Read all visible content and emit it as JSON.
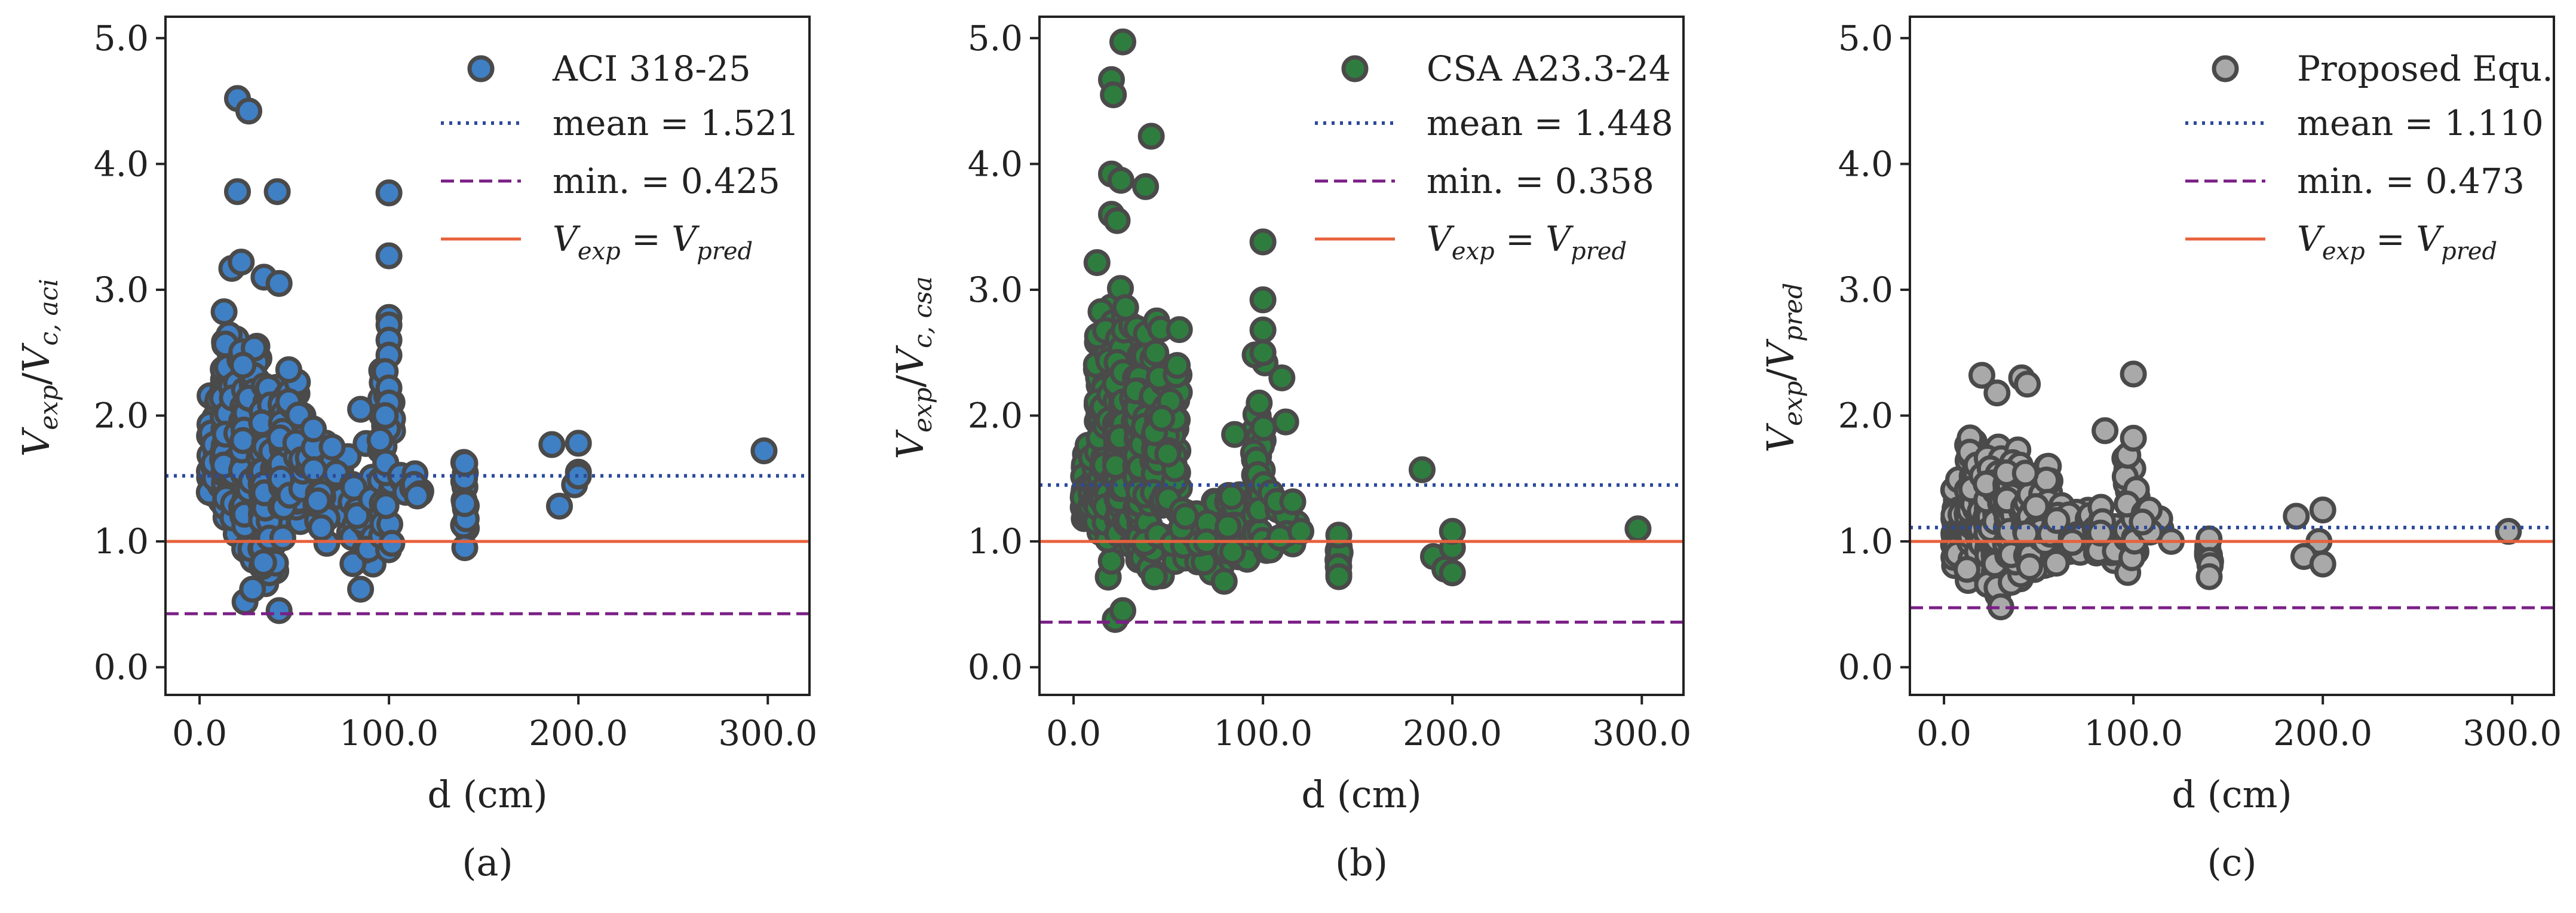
{
  "colors": {
    "aci_fill": "#3f7fc4",
    "csa_fill": "#2e7d3f",
    "proposed_fill": "#a9a9a9",
    "marker_edge": "#4a4a4a",
    "mean_line": "#2b4a9a",
    "min_line": "#7a1f86",
    "unity_line": "#e8613c",
    "axis": "#222222"
  },
  "chart_data": [
    {
      "type": "scatter",
      "panel_caption": "(a)",
      "xlabel": "d (cm)",
      "ylabel": "V_exp/V_c,aci",
      "ylabel_parts": {
        "base": "V",
        "sub1": "exp",
        "sep": "/",
        "base2": "V",
        "sub2": "c, aci"
      },
      "xlim": [
        -18,
        322
      ],
      "ylim": [
        -0.22,
        5.17
      ],
      "xticks": [
        0,
        100,
        200,
        300
      ],
      "xtick_labels": [
        "0.0",
        "100.0",
        "200.0",
        "300.0"
      ],
      "yticks": [
        0,
        1,
        2,
        3,
        4,
        5
      ],
      "ytick_labels": [
        "0.0",
        "1.0",
        "2.0",
        "3.0",
        "4.0",
        "5.0"
      ],
      "fill_key": "aci_fill",
      "legend": {
        "series": "ACI 318-25",
        "mean": "mean = 1.521",
        "min": "min. = 0.425",
        "unity": {
          "a": "V",
          "a_sub": "exp",
          "eq": " = ",
          "b": "V",
          "b_sub": "pred"
        }
      },
      "mean": 1.521,
      "min": 0.425,
      "unity": 1.0,
      "series": {
        "name": "ACI 318-25",
        "clusters": [
          {
            "x": [
              5,
              12
            ],
            "y_min": 1.1,
            "y_max": 2.35,
            "n": 70
          },
          {
            "x": [
              12,
              22
            ],
            "y_min": 0.9,
            "y_max": 3.2,
            "n": 110
          },
          {
            "x": [
              22,
              32
            ],
            "y_min": 0.55,
            "y_max": 2.9,
            "n": 110
          },
          {
            "x": [
              32,
              42
            ],
            "y_min": 0.45,
            "y_max": 2.6,
            "n": 120
          },
          {
            "x": [
              42,
              56
            ],
            "y_min": 0.9,
            "y_max": 2.55,
            "n": 100
          },
          {
            "x": [
              56,
              80
            ],
            "y_min": 0.85,
            "y_max": 2.0,
            "n": 30
          },
          {
            "x": [
              80,
              92
            ],
            "y_min": 0.6,
            "y_max": 1.9,
            "n": 22
          },
          {
            "x": [
              95,
              102
            ],
            "y_min": 0.7,
            "y_max": 2.8,
            "n": 35
          },
          {
            "x": [
              103,
              118
            ],
            "y_min": 1.3,
            "y_max": 1.6,
            "n": 10
          },
          {
            "x": [
              139,
              141
            ],
            "y_min": 0.95,
            "y_max": 1.75,
            "n": 12
          }
        ],
        "points": [
          {
            "x": 20,
            "y": 4.52
          },
          {
            "x": 26,
            "y": 4.42
          },
          {
            "x": 41,
            "y": 3.78
          },
          {
            "x": 20,
            "y": 3.78
          },
          {
            "x": 100,
            "y": 3.77
          },
          {
            "x": 100,
            "y": 3.27
          },
          {
            "x": 17,
            "y": 3.17
          },
          {
            "x": 22,
            "y": 3.22
          },
          {
            "x": 34,
            "y": 3.1
          },
          {
            "x": 42,
            "y": 3.05
          },
          {
            "x": 100,
            "y": 2.78
          },
          {
            "x": 100,
            "y": 2.72
          },
          {
            "x": 100,
            "y": 2.6
          },
          {
            "x": 100,
            "y": 2.48
          },
          {
            "x": 98,
            "y": 2.35
          },
          {
            "x": 100,
            "y": 2.22
          },
          {
            "x": 100,
            "y": 2.1
          },
          {
            "x": 98,
            "y": 2.0
          },
          {
            "x": 85,
            "y": 2.05
          },
          {
            "x": 70,
            "y": 1.75
          },
          {
            "x": 85,
            "y": 0.62
          },
          {
            "x": 42,
            "y": 0.45
          },
          {
            "x": 24,
            "y": 0.52
          },
          {
            "x": 28,
            "y": 0.62
          },
          {
            "x": 186,
            "y": 1.77
          },
          {
            "x": 200,
            "y": 1.78
          },
          {
            "x": 200,
            "y": 1.55
          },
          {
            "x": 198,
            "y": 1.45
          },
          {
            "x": 190,
            "y": 1.28
          },
          {
            "x": 200,
            "y": 1.52
          },
          {
            "x": 298,
            "y": 1.72
          },
          {
            "x": 140,
            "y": 1.62
          },
          {
            "x": 140,
            "y": 1.3
          },
          {
            "x": 140,
            "y": 0.95
          }
        ]
      }
    },
    {
      "type": "scatter",
      "panel_caption": "(b)",
      "xlabel": "d (cm)",
      "ylabel": "V_exp/V_c,csa",
      "ylabel_parts": {
        "base": "V",
        "sub1": "exp",
        "sep": "/",
        "base2": "V",
        "sub2": "c, csa"
      },
      "xlim": [
        -18,
        322
      ],
      "ylim": [
        -0.22,
        5.17
      ],
      "xticks": [
        0,
        100,
        200,
        300
      ],
      "xtick_labels": [
        "0.0",
        "100.0",
        "200.0",
        "300.0"
      ],
      "yticks": [
        0,
        1,
        2,
        3,
        4,
        5
      ],
      "ytick_labels": [
        "0.0",
        "1.0",
        "2.0",
        "3.0",
        "4.0",
        "5.0"
      ],
      "fill_key": "csa_fill",
      "legend": {
        "series": "CSA A23.3-24",
        "mean": "mean = 1.448",
        "min": "min. = 0.358",
        "unity": {
          "a": "V",
          "a_sub": "exp",
          "eq": " = ",
          "b": "V",
          "b_sub": "pred"
        }
      },
      "mean": 1.448,
      "min": 0.358,
      "unity": 1.0,
      "series": {
        "name": "CSA A23.3-24",
        "clusters": [
          {
            "x": [
              5,
              12
            ],
            "y_min": 0.95,
            "y_max": 1.9,
            "n": 70
          },
          {
            "x": [
              12,
              22
            ],
            "y_min": 0.6,
            "y_max": 3.4,
            "n": 120
          },
          {
            "x": [
              22,
              32
            ],
            "y_min": 0.45,
            "y_max": 3.3,
            "n": 120
          },
          {
            "x": [
              32,
              42
            ],
            "y_min": 0.5,
            "y_max": 3.0,
            "n": 120
          },
          {
            "x": [
              42,
              56
            ],
            "y_min": 0.6,
            "y_max": 3.0,
            "n": 100
          },
          {
            "x": [
              56,
              80
            ],
            "y_min": 0.6,
            "y_max": 1.6,
            "n": 30
          },
          {
            "x": [
              80,
              92
            ],
            "y_min": 0.6,
            "y_max": 1.8,
            "n": 22
          },
          {
            "x": [
              95,
              102
            ],
            "y_min": 0.55,
            "y_max": 2.7,
            "n": 35
          },
          {
            "x": [
              103,
              118
            ],
            "y_min": 0.9,
            "y_max": 1.5,
            "n": 10
          },
          {
            "x": [
              139,
              141
            ],
            "y_min": 0.7,
            "y_max": 1.05,
            "n": 12
          }
        ],
        "points": [
          {
            "x": 26,
            "y": 4.97
          },
          {
            "x": 20,
            "y": 4.67
          },
          {
            "x": 21,
            "y": 4.55
          },
          {
            "x": 41,
            "y": 4.22
          },
          {
            "x": 20,
            "y": 3.92
          },
          {
            "x": 25,
            "y": 3.87
          },
          {
            "x": 38,
            "y": 3.82
          },
          {
            "x": 20,
            "y": 3.6
          },
          {
            "x": 23,
            "y": 3.55
          },
          {
            "x": 100,
            "y": 3.38
          },
          {
            "x": 100,
            "y": 2.92
          },
          {
            "x": 100,
            "y": 2.68
          },
          {
            "x": 100,
            "y": 2.5
          },
          {
            "x": 98,
            "y": 2.1
          },
          {
            "x": 110,
            "y": 2.3
          },
          {
            "x": 112,
            "y": 1.95
          },
          {
            "x": 85,
            "y": 1.85
          },
          {
            "x": 184,
            "y": 1.57
          },
          {
            "x": 190,
            "y": 0.88
          },
          {
            "x": 196,
            "y": 0.78
          },
          {
            "x": 200,
            "y": 0.95
          },
          {
            "x": 200,
            "y": 1.08
          },
          {
            "x": 200,
            "y": 0.75
          },
          {
            "x": 298,
            "y": 1.1
          },
          {
            "x": 22,
            "y": 0.38
          },
          {
            "x": 26,
            "y": 0.45
          },
          {
            "x": 120,
            "y": 1.08
          },
          {
            "x": 140,
            "y": 1.05
          },
          {
            "x": 140,
            "y": 0.72
          }
        ]
      }
    },
    {
      "type": "scatter",
      "panel_caption": "(c)",
      "xlabel": "d (cm)",
      "ylabel": "V_exp/V_pred",
      "ylabel_parts": {
        "base": "V",
        "sub1": "exp",
        "sep": "/",
        "base2": "V",
        "sub2": "pred"
      },
      "xlim": [
        -18,
        322
      ],
      "ylim": [
        -0.22,
        5.17
      ],
      "xticks": [
        0,
        100,
        200,
        300
      ],
      "xtick_labels": [
        "0.0",
        "100.0",
        "200.0",
        "300.0"
      ],
      "yticks": [
        0,
        1,
        2,
        3,
        4,
        5
      ],
      "ytick_labels": [
        "0.0",
        "1.0",
        "2.0",
        "3.0",
        "4.0",
        "5.0"
      ],
      "fill_key": "proposed_fill",
      "legend": {
        "series": "Proposed Equ.",
        "mean": "mean = 1.110",
        "min": "min. = 0.473",
        "unity": {
          "a": "V",
          "a_sub": "exp",
          "eq": " = ",
          "b": "V",
          "b_sub": "pred"
        }
      },
      "mean": 1.11,
      "min": 0.473,
      "unity": 1.0,
      "series": {
        "name": "Proposed Equ.",
        "clusters": [
          {
            "x": [
              5,
              12
            ],
            "y_min": 0.75,
            "y_max": 1.6,
            "n": 80
          },
          {
            "x": [
              12,
              22
            ],
            "y_min": 0.6,
            "y_max": 1.95,
            "n": 110
          },
          {
            "x": [
              22,
              32
            ],
            "y_min": 0.5,
            "y_max": 1.9,
            "n": 110
          },
          {
            "x": [
              32,
              42
            ],
            "y_min": 0.6,
            "y_max": 1.85,
            "n": 110
          },
          {
            "x": [
              42,
              56
            ],
            "y_min": 0.7,
            "y_max": 1.75,
            "n": 100
          },
          {
            "x": [
              56,
              80
            ],
            "y_min": 0.75,
            "y_max": 1.4,
            "n": 30
          },
          {
            "x": [
              80,
              92
            ],
            "y_min": 0.7,
            "y_max": 1.5,
            "n": 22
          },
          {
            "x": [
              95,
              102
            ],
            "y_min": 0.65,
            "y_max": 1.85,
            "n": 35
          },
          {
            "x": [
              103,
              118
            ],
            "y_min": 0.95,
            "y_max": 1.35,
            "n": 10
          },
          {
            "x": [
              139,
              141
            ],
            "y_min": 0.75,
            "y_max": 1.08,
            "n": 12
          }
        ],
        "points": [
          {
            "x": 100,
            "y": 2.33
          },
          {
            "x": 20,
            "y": 2.32
          },
          {
            "x": 28,
            "y": 2.18
          },
          {
            "x": 41,
            "y": 2.3
          },
          {
            "x": 44,
            "y": 2.25
          },
          {
            "x": 85,
            "y": 1.88
          },
          {
            "x": 100,
            "y": 1.82
          },
          {
            "x": 186,
            "y": 1.2
          },
          {
            "x": 200,
            "y": 1.25
          },
          {
            "x": 198,
            "y": 1.0
          },
          {
            "x": 190,
            "y": 0.88
          },
          {
            "x": 200,
            "y": 0.82
          },
          {
            "x": 298,
            "y": 1.08
          },
          {
            "x": 30,
            "y": 0.48
          },
          {
            "x": 120,
            "y": 1.0
          },
          {
            "x": 140,
            "y": 0.72
          }
        ]
      }
    }
  ]
}
